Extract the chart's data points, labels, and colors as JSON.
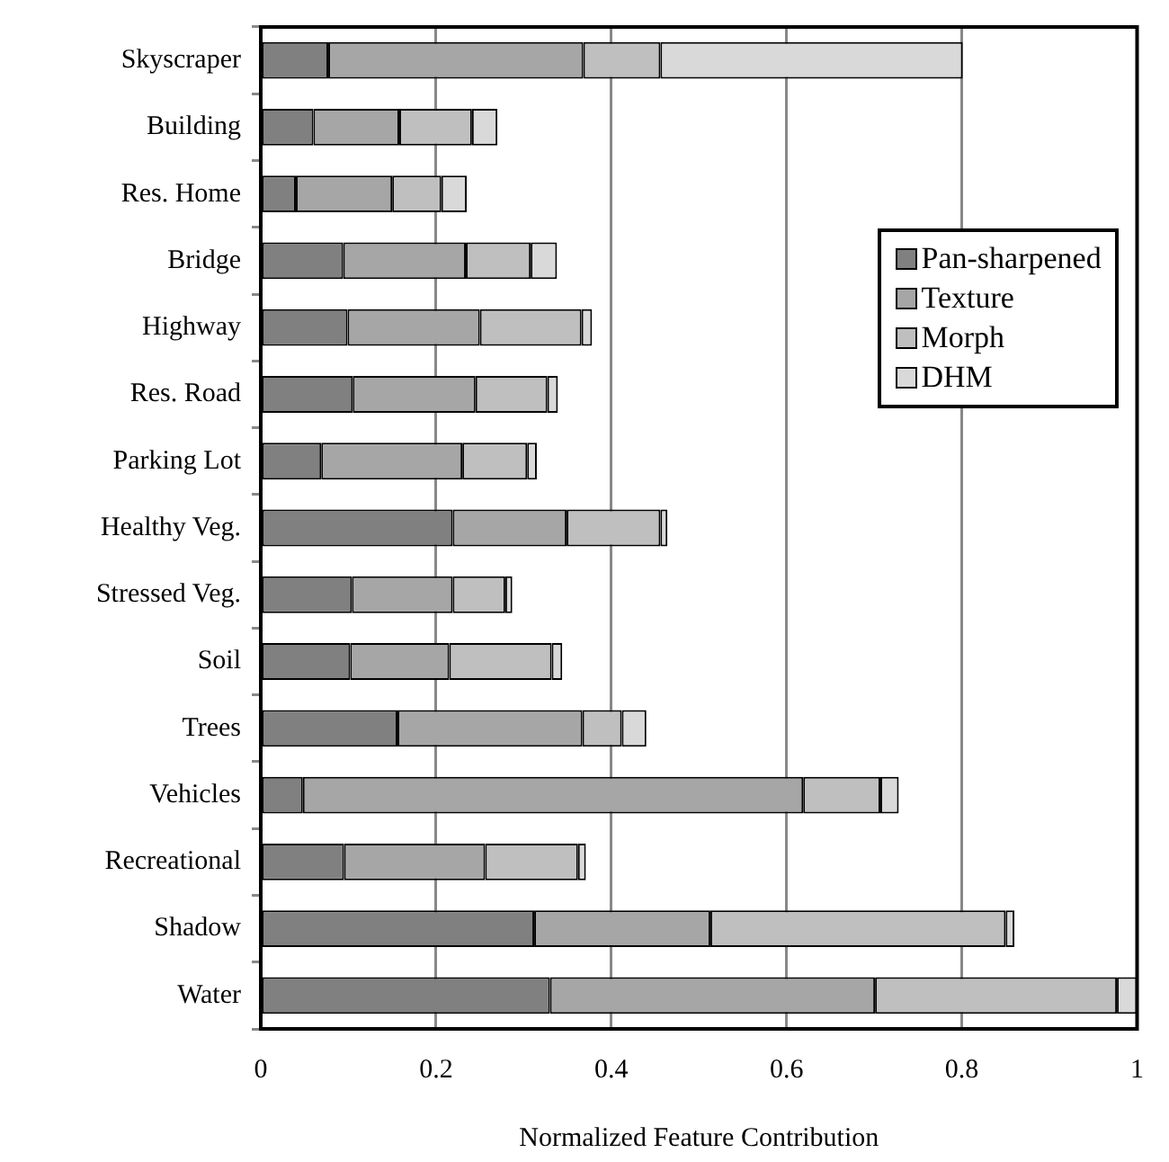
{
  "chart_data": {
    "type": "bar",
    "orientation": "horizontal",
    "stacked": true,
    "xlabel": "Normalized Feature Contribution",
    "categories": [
      "Skyscraper",
      "Building",
      "Res. Home",
      "Bridge",
      "Highway",
      "Res. Road",
      "Parking Lot",
      "Healthy Veg.",
      "Stressed Veg.",
      "Soil",
      "Trees",
      "Vehicles",
      "Recreational",
      "Shadow",
      "Water"
    ],
    "series": [
      {
        "name": "Pan-sharpened",
        "color": "#808080",
        "values": [
          0.077,
          0.06,
          0.04,
          0.094,
          0.099,
          0.105,
          0.069,
          0.219,
          0.104,
          0.102,
          0.156,
          0.048,
          0.095,
          0.312,
          0.33
        ]
      },
      {
        "name": "Texture",
        "color": "#a6a6a6",
        "values": [
          0.291,
          0.098,
          0.11,
          0.14,
          0.151,
          0.14,
          0.161,
          0.13,
          0.115,
          0.113,
          0.211,
          0.571,
          0.161,
          0.201,
          0.371
        ]
      },
      {
        "name": "Morph",
        "color": "#bfbfbf",
        "values": [
          0.088,
          0.083,
          0.056,
          0.074,
          0.116,
          0.082,
          0.074,
          0.107,
          0.06,
          0.117,
          0.045,
          0.088,
          0.106,
          0.337,
          0.276
        ]
      },
      {
        "name": "DHM",
        "color": "#d9d9d9",
        "values": [
          0.345,
          0.029,
          0.029,
          0.03,
          0.012,
          0.012,
          0.011,
          0.008,
          0.008,
          0.012,
          0.028,
          0.021,
          0.009,
          0.01,
          0.023
        ]
      }
    ],
    "xlim": [
      0,
      1
    ],
    "xticks": [
      0,
      0.2,
      0.4,
      0.6,
      0.8,
      1
    ],
    "grid": "x",
    "legend": "top right"
  }
}
